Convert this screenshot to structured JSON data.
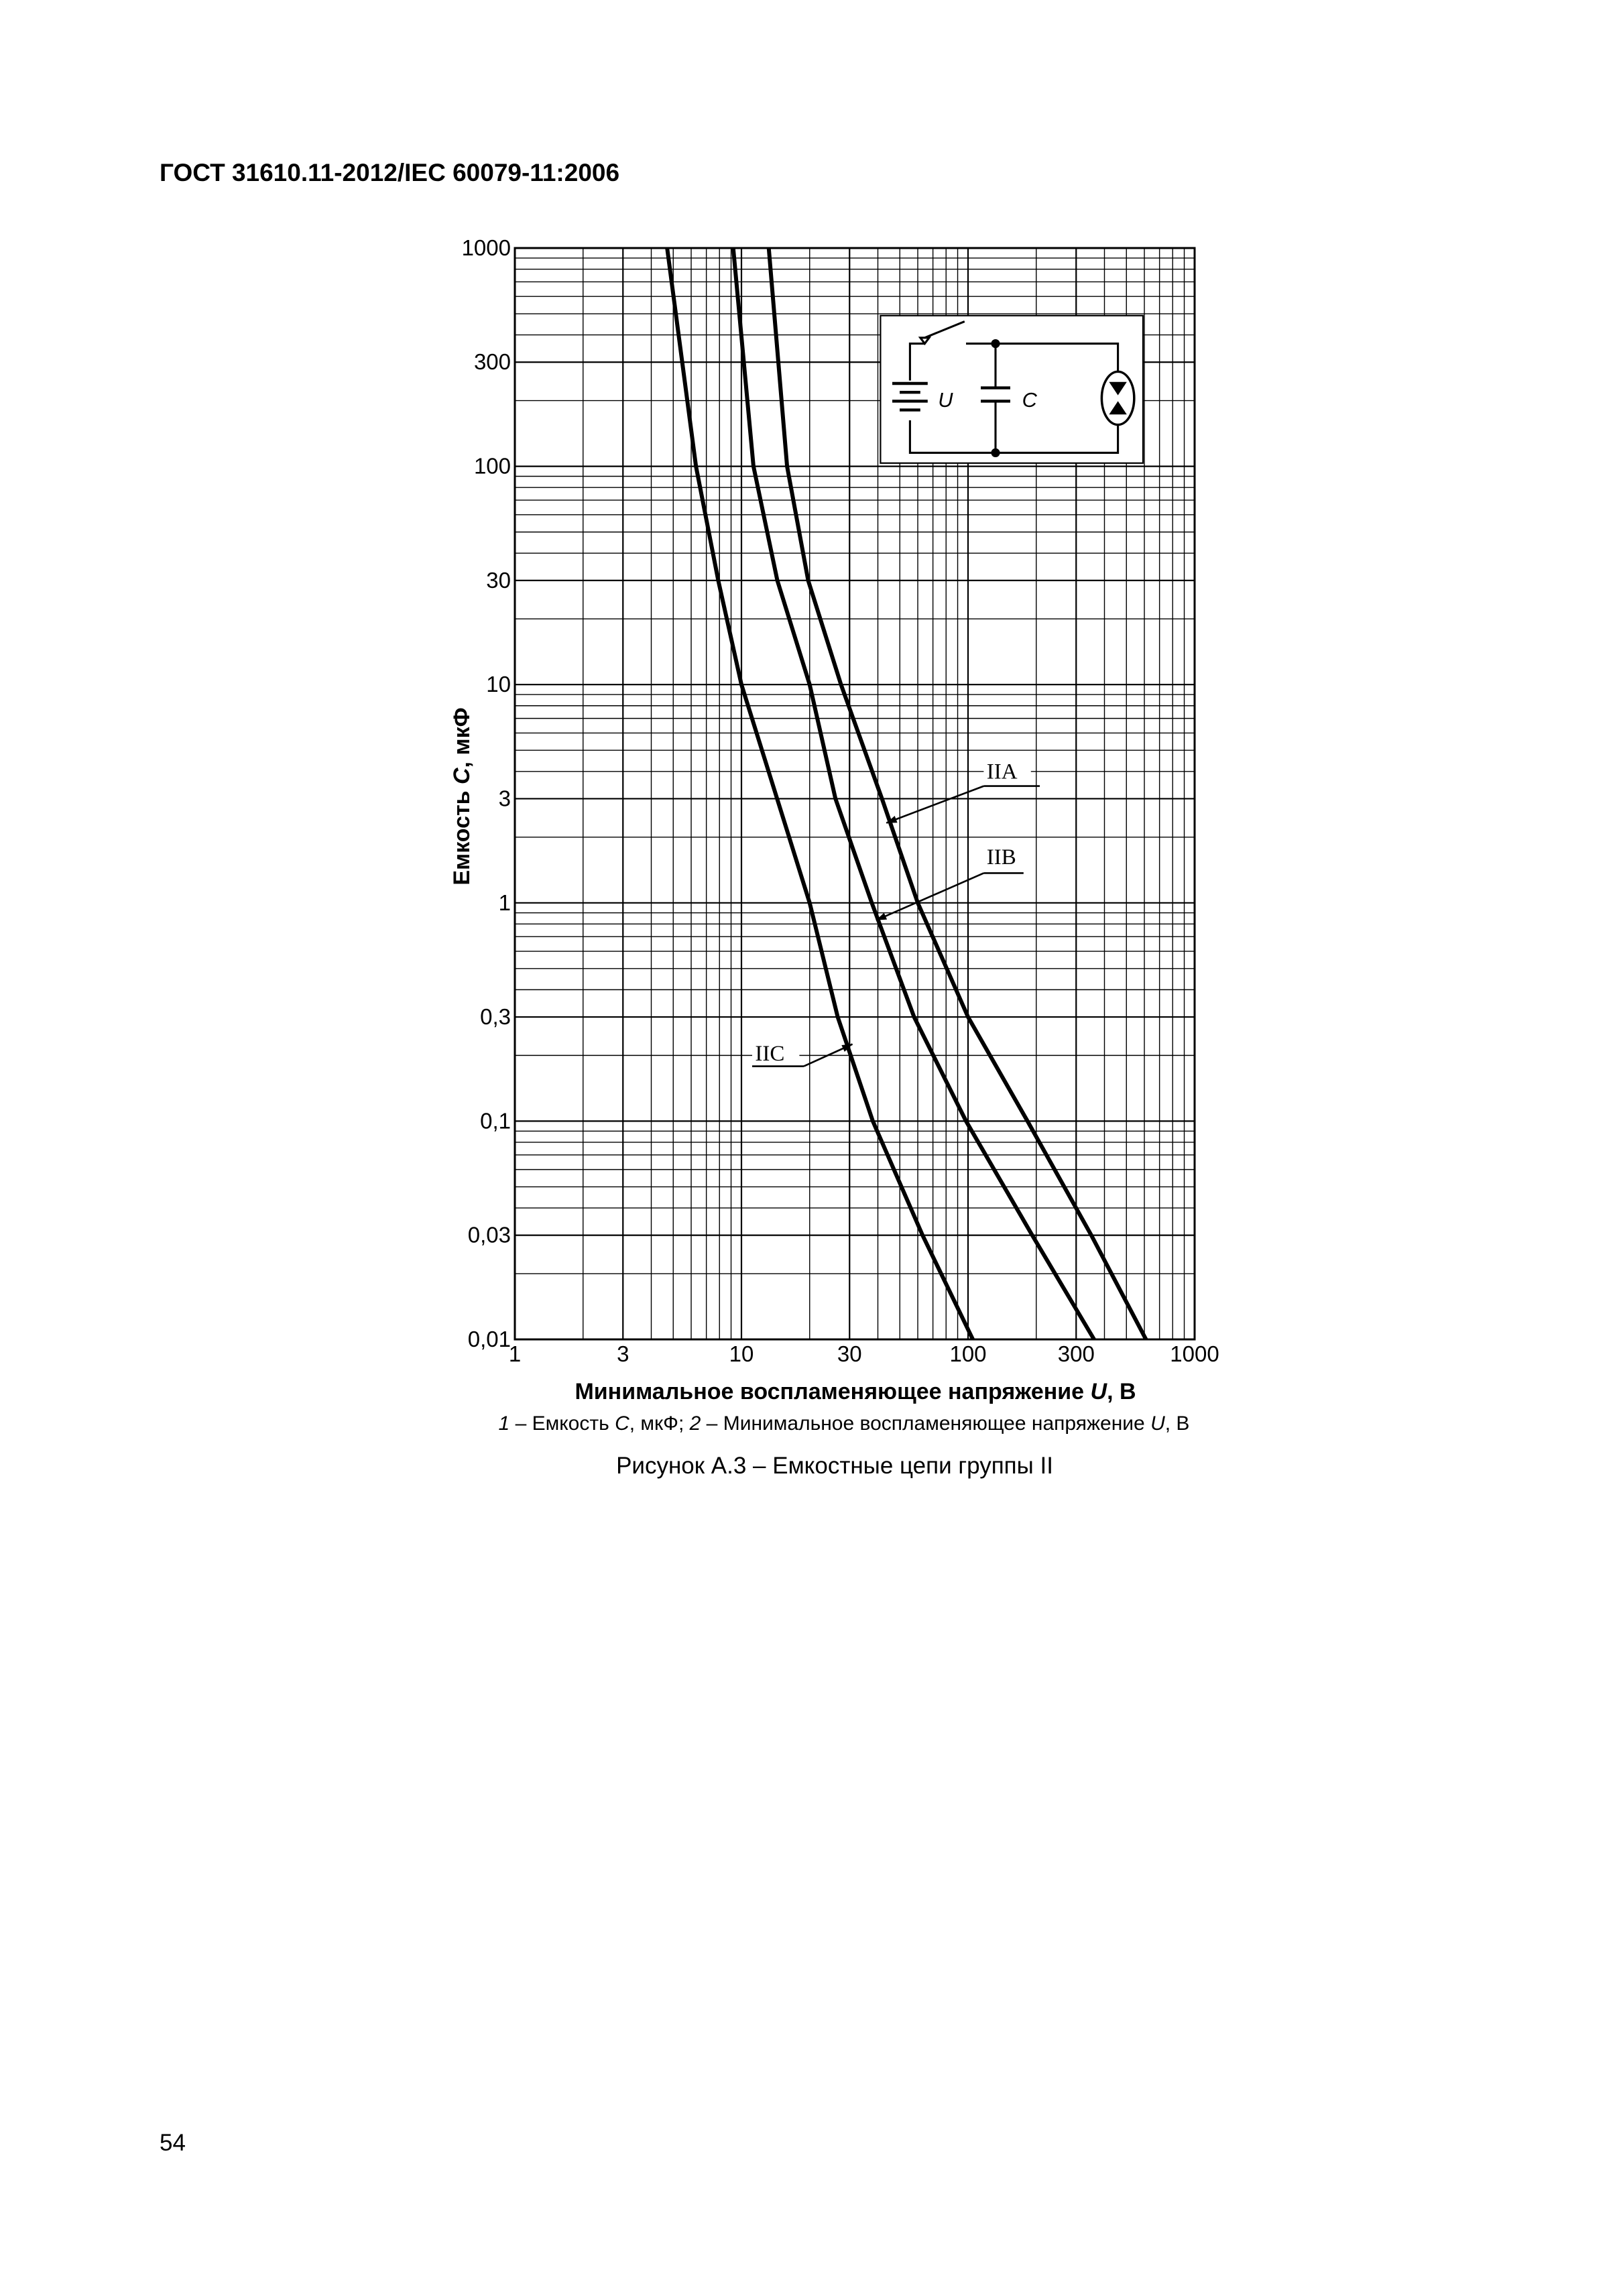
{
  "header": {
    "title": "ГОСТ 31610.11-2012/IEC 60079-11:2006"
  },
  "chart_data": {
    "type": "line",
    "xscale": "log",
    "yscale": "log",
    "grid": true,
    "minor_grid": true,
    "x_label": [
      "Минимальное воспламеняющее напряжение ",
      "U",
      ", В"
    ],
    "y_label": [
      "Емкость ",
      "C",
      ", мкФ"
    ],
    "xlim": [
      1,
      1000
    ],
    "ylim": [
      0.01,
      1000
    ],
    "xticks": [
      1,
      3,
      10,
      30,
      100,
      300,
      1000
    ],
    "yticks": [
      {
        "value": 0.01,
        "label": "0,01"
      },
      {
        "value": 0.03,
        "label": "0,03"
      },
      {
        "value": 0.1,
        "label": "0,1"
      },
      {
        "value": 0.3,
        "label": "0,3"
      },
      1,
      3,
      10,
      30,
      100,
      300,
      1000
    ],
    "series": [
      {
        "name": "IIA",
        "color": "#000000",
        "x": [
          13.2,
          15.9,
          19.7,
          27.5,
          41.7,
          60,
          100,
          183,
          350,
          610
        ],
        "values": [
          1000,
          100,
          30,
          10,
          3,
          1,
          0.3,
          0.1,
          0.03,
          0.01
        ]
      },
      {
        "name": "IIB",
        "color": "#000000",
        "x": [
          9.2,
          11.3,
          14.4,
          20,
          26,
          37.6,
          57.8,
          98,
          192,
          360
        ],
        "values": [
          1000,
          100,
          30,
          10,
          3,
          1,
          0.3,
          0.1,
          0.03,
          0.01
        ]
      },
      {
        "name": "IIC",
        "color": "#000000",
        "x": [
          4.7,
          6.3,
          7.9,
          10,
          20,
          26.6,
          38,
          63,
          105
        ],
        "values": [
          1000,
          100,
          30,
          10,
          1,
          0.3,
          0.1,
          0.03,
          0.01
        ]
      }
    ]
  },
  "circuit": {
    "voltage_label": "U",
    "capacitance_label": "C"
  },
  "note": [
    "1",
    " – Емкость ",
    "C",
    ", мкФ; ",
    "2",
    " – Минимальное воспламеняющее напряжение ",
    "U",
    ", В"
  ],
  "caption": "Рисунок А.3 – Емкостные цепи группы II",
  "page_number": "54"
}
